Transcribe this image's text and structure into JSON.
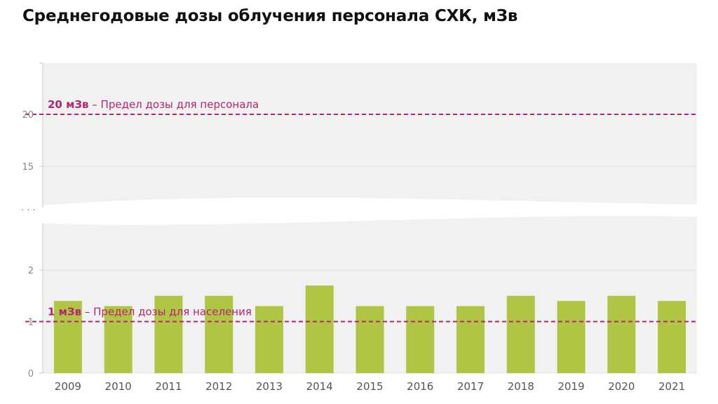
{
  "title": "Среднегодовые дозы облучения персонала СХК, мЗв",
  "chart_data": {
    "type": "bar",
    "categories": [
      "2009",
      "2010",
      "2011",
      "2012",
      "2013",
      "2014",
      "2015",
      "2016",
      "2017",
      "2018",
      "2019",
      "2020",
      "2021"
    ],
    "values": [
      1.4,
      1.3,
      1.5,
      1.5,
      1.3,
      1.7,
      1.3,
      1.3,
      1.3,
      1.5,
      1.4,
      1.5,
      1.4
    ],
    "y_ticks_lower": [
      "0",
      "1",
      "2"
    ],
    "y_ticks_upper": [
      "15",
      "20"
    ],
    "axis_break_label": "· · ·",
    "ylim_lower": [
      0,
      2
    ],
    "ylim_upper": [
      15,
      20
    ],
    "axis_break": true,
    "grid": true,
    "reference_lines": [
      {
        "value": 20,
        "label_bold": "20 мЗв",
        "label_rest": " – Предел дозы для персонала",
        "color": "#b5256f"
      },
      {
        "value": 1,
        "label_bold": "1 мЗв",
        "label_rest": " – Предел дозы для населения",
        "color": "#b5256f"
      }
    ],
    "colors": {
      "bar": "#b1c544",
      "reference_line": "#b5256f",
      "plot_background": "#f1f1f1"
    }
  }
}
